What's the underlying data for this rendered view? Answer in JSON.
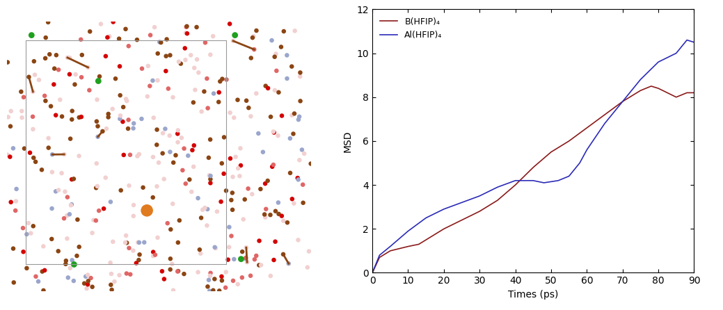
{
  "chart_data": {
    "type": "line",
    "xlabel": "Times (ps)",
    "ylabel": "MSD",
    "xlim": [
      0,
      90
    ],
    "xticks": [
      0,
      10,
      20,
      30,
      40,
      50,
      60,
      70,
      80,
      90
    ],
    "ylim": [
      0,
      12
    ],
    "yticks": [
      0,
      2,
      4,
      6,
      8,
      10,
      12
    ],
    "grid": false,
    "legend": "upper left",
    "series": [
      {
        "name": "B(HFIP)₄",
        "color": "#8b1a1a",
        "x": [
          0,
          2,
          5,
          10,
          13,
          15,
          20,
          25,
          30,
          35,
          40,
          45,
          50,
          55,
          60,
          65,
          70,
          75,
          78,
          80,
          85,
          88,
          90
        ],
        "values": [
          0,
          0.7,
          1.0,
          1.2,
          1.3,
          1.5,
          2.0,
          2.4,
          2.8,
          3.3,
          4.0,
          4.8,
          5.5,
          6.0,
          6.6,
          7.2,
          7.8,
          8.3,
          8.5,
          8.4,
          8.0,
          8.2,
          8.2
        ]
      },
      {
        "name": "Al(HFIP)₄",
        "color": "#2b2bb8",
        "x": [
          0,
          2,
          5,
          10,
          15,
          20,
          25,
          30,
          35,
          40,
          45,
          48,
          52,
          55,
          58,
          60,
          65,
          70,
          75,
          80,
          85,
          88,
          90
        ],
        "values": [
          0,
          0.8,
          1.2,
          1.9,
          2.5,
          2.9,
          3.2,
          3.5,
          3.9,
          4.2,
          4.2,
          4.1,
          4.2,
          4.4,
          5.0,
          5.6,
          6.8,
          7.8,
          8.8,
          9.6,
          10.0,
          10.6,
          10.5
        ]
      }
    ]
  }
}
